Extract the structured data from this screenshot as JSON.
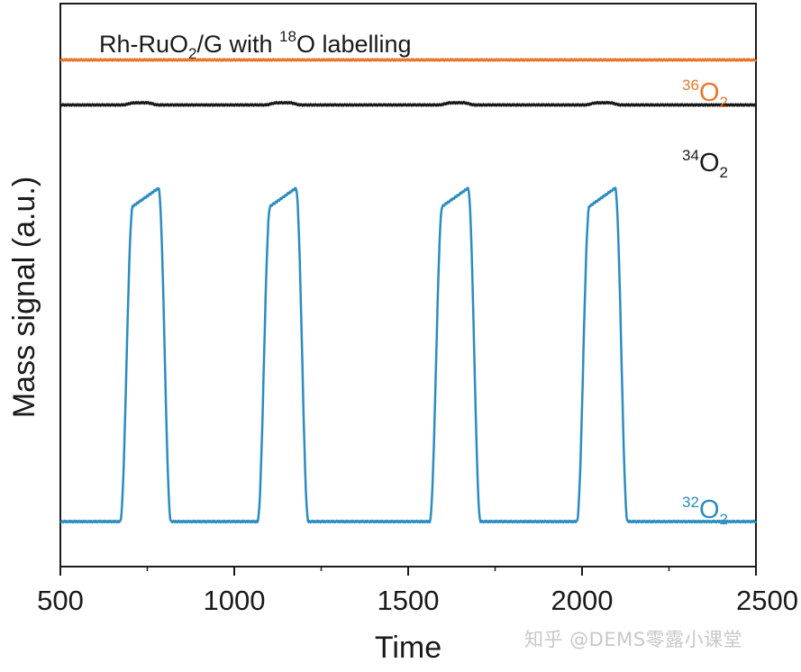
{
  "chart_data": {
    "type": "line",
    "title": {
      "prefix": "Rh-RuO",
      "prefix_sub": "2",
      "middle": "/G with ",
      "isotope_sup": "18",
      "suffix": "O labelling"
    },
    "xlabel": "Time",
    "ylabel": "Mass signal (a.u.)",
    "xlim": [
      500,
      2500
    ],
    "xticks": [
      "500",
      "1000",
      "1500",
      "2000",
      "2500"
    ],
    "xtick_values": [
      500,
      1000,
      1500,
      2000,
      2500
    ],
    "ylim": [
      0,
      1
    ],
    "grid": false,
    "series": [
      {
        "name": "36O2",
        "label_sup": "36",
        "label_main": "O",
        "label_sub": "2",
        "color": "#e8772e",
        "baseline": 0.9,
        "peak_height": 0.001,
        "peak_centers": [],
        "peak_width": 60
      },
      {
        "name": "34O2",
        "label_sup": "34",
        "label_main": "O",
        "label_sub": "2",
        "color": "#1a1a1a",
        "baseline": 0.82,
        "peak_height": 0.004,
        "peak_centers": [
          730,
          1140,
          1640,
          2060
        ],
        "peak_width": 70
      },
      {
        "name": "32O2",
        "label_sup": "32",
        "label_main": "O",
        "label_sub": "2",
        "color": "#2b8cbe",
        "baseline": 0.08,
        "peak_height": 0.6,
        "peak_centers": [
          745,
          1140,
          1635,
          2058
        ],
        "peak_width": 110
      }
    ]
  },
  "watermark": "知乎 @DEMS零露小课堂"
}
